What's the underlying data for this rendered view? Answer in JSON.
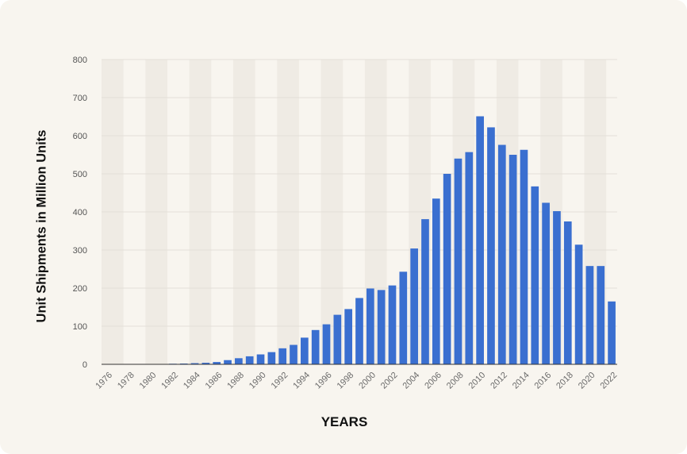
{
  "chart_data": {
    "type": "bar",
    "title": "",
    "xlabel": "YEARS",
    "ylabel": "Unit Shipments in Million Units",
    "ylim": [
      0,
      800
    ],
    "yticks": [
      0,
      100,
      200,
      300,
      400,
      500,
      600,
      700,
      800
    ],
    "grid": true,
    "legend": "none",
    "bar_color": "#3a6fd0",
    "categories": [
      "1976",
      "1977",
      "1978",
      "1979",
      "1980",
      "1981",
      "1982",
      "1983",
      "1984",
      "1985",
      "1986",
      "1987",
      "1988",
      "1989",
      "1990",
      "1991",
      "1992",
      "1993",
      "1994",
      "1995",
      "1996",
      "1997",
      "1998",
      "1999",
      "2000",
      "2001",
      "2002",
      "2003",
      "2004",
      "2005",
      "2006",
      "2007",
      "2008",
      "2009",
      "2010",
      "2011",
      "2012",
      "2013",
      "2014",
      "2015",
      "2016",
      "2017",
      "2018",
      "2019",
      "2020",
      "2021",
      "2022"
    ],
    "x_tick_labels": [
      "1976",
      "1978",
      "1980",
      "1982",
      "1984",
      "1986",
      "1988",
      "1990",
      "1992",
      "1994",
      "1996",
      "1998",
      "2000",
      "2002",
      "2004",
      "2006",
      "2008",
      "2010",
      "2012",
      "2014",
      "2016",
      "2018",
      "2020",
      "2022"
    ],
    "values": [
      0.05,
      0.1,
      0.2,
      0.5,
      0.7,
      1.0,
      1.5,
      2,
      3,
      4,
      6,
      11,
      16,
      21,
      26,
      32,
      42,
      51,
      70,
      90,
      105,
      130,
      145,
      174,
      199,
      195,
      207,
      243,
      304,
      381,
      435,
      500,
      540,
      557,
      651,
      622,
      576,
      550,
      563,
      467,
      424,
      402,
      375,
      314,
      258,
      258,
      165
    ]
  }
}
